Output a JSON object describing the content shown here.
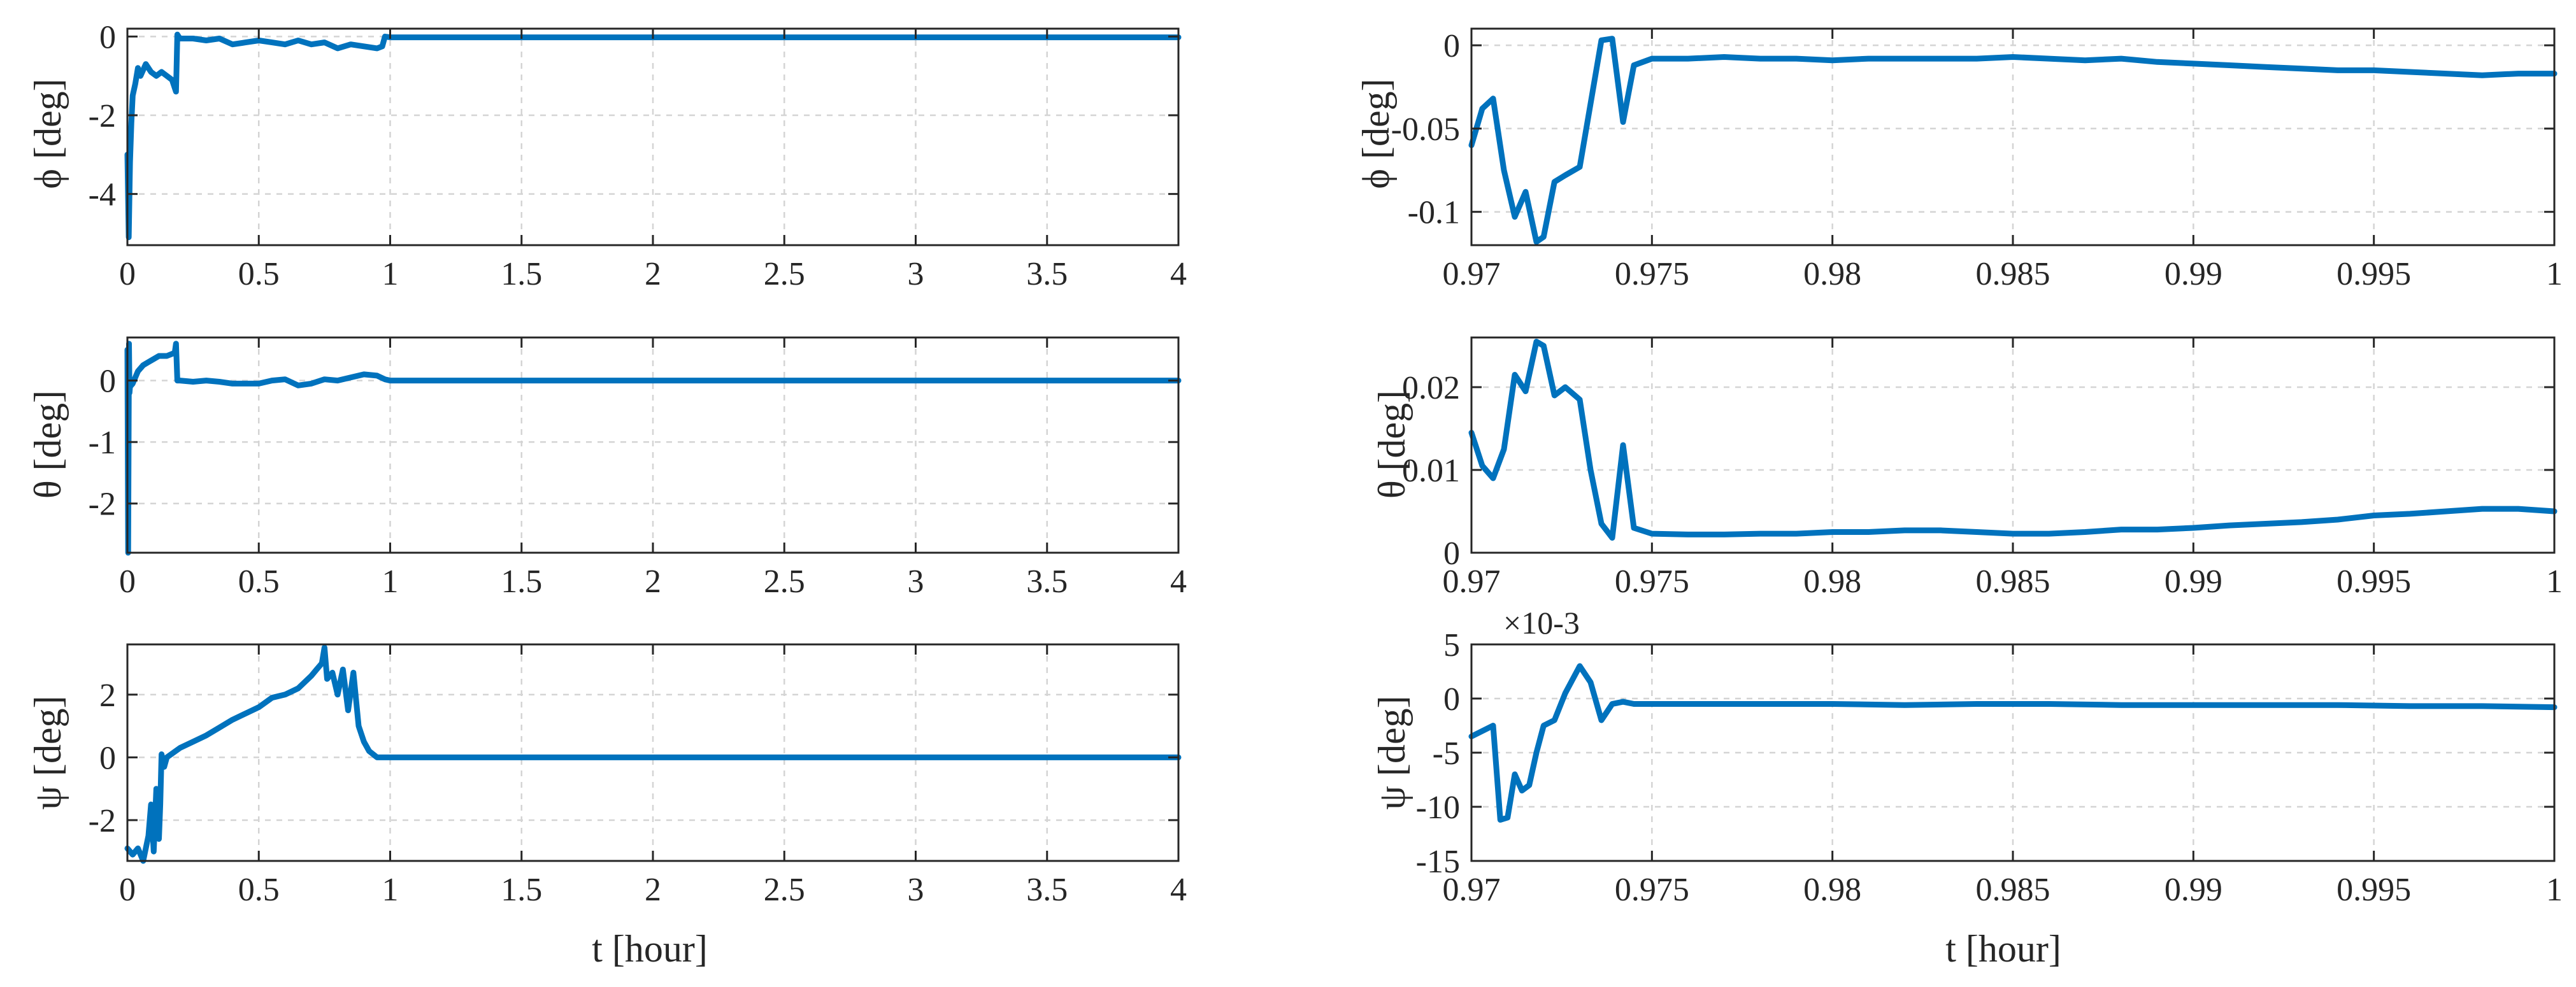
{
  "colors": {
    "line": "#0072BD",
    "axis": "#262626",
    "grid": "#d4d4d4"
  },
  "chart_data": [
    {
      "type": "line",
      "xlabel": "",
      "ylabel": "ϕ [deg]",
      "xlim": [
        0,
        4
      ],
      "ylim": [
        -5.3,
        0.2
      ],
      "xticks": [
        0,
        0.5,
        1,
        1.5,
        2,
        2.5,
        3,
        3.5,
        4
      ],
      "xticklabels": [
        "0",
        "0.5",
        "1",
        "1.5",
        "2",
        "2.5",
        "3",
        "3.5",
        "4"
      ],
      "yticks": [
        -4,
        -2,
        0
      ],
      "yticklabels": [
        "-4",
        "-2",
        "0"
      ],
      "grid": true,
      "exponent": "",
      "series": [
        {
          "x": [
            0,
            0.005,
            0.01,
            0.015,
            0.02,
            0.03,
            0.04,
            0.05,
            0.07,
            0.09,
            0.11,
            0.13,
            0.15,
            0.17,
            0.185,
            0.19,
            0.195,
            0.2,
            0.25,
            0.3,
            0.35,
            0.4,
            0.45,
            0.5,
            0.55,
            0.6,
            0.65,
            0.7,
            0.75,
            0.8,
            0.85,
            0.9,
            0.95,
            0.97,
            0.98,
            1.0,
            1.5,
            2.0,
            2.5,
            3.0,
            3.5,
            4.0
          ],
          "y": [
            -3.0,
            -5.1,
            -3.2,
            -2.2,
            -1.5,
            -1.2,
            -0.8,
            -1.0,
            -0.7,
            -0.9,
            -1.0,
            -0.9,
            -1.0,
            -1.1,
            -1.4,
            0.05,
            0.0,
            -0.05,
            -0.05,
            -0.1,
            -0.05,
            -0.2,
            -0.15,
            -0.1,
            -0.15,
            -0.2,
            -0.1,
            -0.2,
            -0.15,
            -0.3,
            -0.2,
            -0.25,
            -0.3,
            -0.25,
            0.0,
            -0.02,
            -0.02,
            -0.02,
            -0.02,
            -0.02,
            -0.02,
            -0.02
          ]
        }
      ]
    },
    {
      "type": "line",
      "xlabel": "",
      "ylabel": "ϕ [deg]",
      "xlim": [
        0.97,
        1.0
      ],
      "ylim": [
        -0.12,
        0.01
      ],
      "xticks": [
        0.97,
        0.975,
        0.98,
        0.985,
        0.99,
        0.995,
        1.0
      ],
      "xticklabels": [
        "0.97",
        "0.975",
        "0.98",
        "0.985",
        "0.99",
        "0.995",
        "1"
      ],
      "yticks": [
        -0.1,
        -0.05,
        0
      ],
      "yticklabels": [
        "-0.1",
        "-0.05",
        "0"
      ],
      "grid": true,
      "exponent": "",
      "series": [
        {
          "x": [
            0.97,
            0.9703,
            0.9706,
            0.9709,
            0.9712,
            0.9715,
            0.9718,
            0.972,
            0.9723,
            0.9726,
            0.973,
            0.9733,
            0.9736,
            0.9739,
            0.9742,
            0.9745,
            0.975,
            0.976,
            0.977,
            0.978,
            0.979,
            0.98,
            0.981,
            0.982,
            0.983,
            0.984,
            0.985,
            0.986,
            0.987,
            0.988,
            0.989,
            0.99,
            0.991,
            0.992,
            0.993,
            0.994,
            0.995,
            0.996,
            0.997,
            0.998,
            0.999,
            1.0
          ],
          "y": [
            -0.06,
            -0.038,
            -0.032,
            -0.075,
            -0.103,
            -0.088,
            -0.118,
            -0.115,
            -0.082,
            -0.078,
            -0.073,
            -0.035,
            0.003,
            0.004,
            -0.046,
            -0.012,
            -0.008,
            -0.008,
            -0.007,
            -0.008,
            -0.008,
            -0.009,
            -0.008,
            -0.008,
            -0.008,
            -0.008,
            -0.007,
            -0.008,
            -0.009,
            -0.008,
            -0.01,
            -0.011,
            -0.012,
            -0.013,
            -0.014,
            -0.015,
            -0.015,
            -0.016,
            -0.017,
            -0.018,
            -0.017,
            -0.017
          ]
        }
      ]
    },
    {
      "type": "line",
      "xlabel": "",
      "ylabel": "θ [deg]",
      "xlim": [
        0,
        4
      ],
      "ylim": [
        -2.8,
        0.7
      ],
      "xticks": [
        0,
        0.5,
        1,
        1.5,
        2,
        2.5,
        3,
        3.5,
        4
      ],
      "xticklabels": [
        "0",
        "0.5",
        "1",
        "1.5",
        "2",
        "2.5",
        "3",
        "3.5",
        "4"
      ],
      "yticks": [
        -2,
        -1,
        0
      ],
      "yticklabels": [
        "-2",
        "-1",
        "0"
      ],
      "grid": true,
      "exponent": "",
      "series": [
        {
          "x": [
            0,
            0.003,
            0.006,
            0.008,
            0.01,
            0.02,
            0.04,
            0.06,
            0.08,
            0.1,
            0.12,
            0.15,
            0.18,
            0.185,
            0.19,
            0.2,
            0.25,
            0.3,
            0.35,
            0.4,
            0.45,
            0.5,
            0.55,
            0.6,
            0.65,
            0.7,
            0.75,
            0.8,
            0.85,
            0.9,
            0.95,
            0.98,
            1.0,
            1.5,
            2.0,
            2.5,
            3.0,
            3.5,
            4.0
          ],
          "y": [
            0.5,
            -2.8,
            0.6,
            -0.2,
            -0.1,
            -0.05,
            0.15,
            0.25,
            0.3,
            0.35,
            0.4,
            0.4,
            0.45,
            0.6,
            0.0,
            0.0,
            -0.02,
            0.0,
            -0.02,
            -0.05,
            -0.05,
            -0.05,
            0.0,
            0.02,
            -0.08,
            -0.05,
            0.02,
            0.0,
            0.05,
            0.1,
            0.08,
            0.02,
            0.0,
            0.0,
            0.0,
            0.0,
            0.0,
            0.0,
            0.0
          ]
        }
      ]
    },
    {
      "type": "line",
      "xlabel": "",
      "ylabel": "θ [deg]",
      "xlim": [
        0.97,
        1.0
      ],
      "ylim": [
        0,
        0.026
      ],
      "xticks": [
        0.97,
        0.975,
        0.98,
        0.985,
        0.99,
        0.995,
        1.0
      ],
      "xticklabels": [
        "0.97",
        "0.975",
        "0.98",
        "0.985",
        "0.99",
        "0.995",
        "1"
      ],
      "yticks": [
        0,
        0.01,
        0.02
      ],
      "yticklabels": [
        "0",
        "0.01",
        "0.02"
      ],
      "grid": true,
      "exponent": "",
      "series": [
        {
          "x": [
            0.97,
            0.9703,
            0.9706,
            0.9709,
            0.9712,
            0.9715,
            0.9718,
            0.972,
            0.9723,
            0.9726,
            0.973,
            0.9733,
            0.9736,
            0.9739,
            0.9742,
            0.9745,
            0.975,
            0.976,
            0.977,
            0.978,
            0.979,
            0.98,
            0.981,
            0.982,
            0.983,
            0.984,
            0.985,
            0.986,
            0.987,
            0.988,
            0.989,
            0.99,
            0.991,
            0.992,
            0.993,
            0.994,
            0.995,
            0.996,
            0.997,
            0.998,
            0.999,
            1.0
          ],
          "y": [
            0.0145,
            0.0105,
            0.009,
            0.0125,
            0.0215,
            0.0195,
            0.0255,
            0.025,
            0.019,
            0.02,
            0.0185,
            0.01,
            0.0035,
            0.0018,
            0.013,
            0.003,
            0.0023,
            0.0022,
            0.0022,
            0.0023,
            0.0023,
            0.0025,
            0.0025,
            0.0027,
            0.0027,
            0.0025,
            0.0023,
            0.0023,
            0.0025,
            0.0028,
            0.0028,
            0.003,
            0.0033,
            0.0035,
            0.0037,
            0.004,
            0.0045,
            0.0047,
            0.005,
            0.0053,
            0.0053,
            0.005
          ]
        }
      ]
    },
    {
      "type": "line",
      "xlabel": "t [hour]",
      "ylabel": "ψ [deg]",
      "xlim": [
        0,
        4
      ],
      "ylim": [
        -3.3,
        3.6
      ],
      "xticks": [
        0,
        0.5,
        1,
        1.5,
        2,
        2.5,
        3,
        3.5,
        4
      ],
      "xticklabels": [
        "0",
        "0.5",
        "1",
        "1.5",
        "2",
        "2.5",
        "3",
        "3.5",
        "4"
      ],
      "yticks": [
        -2,
        0,
        2
      ],
      "yticklabels": [
        "-2",
        "0",
        "2"
      ],
      "grid": true,
      "exponent": "",
      "series": [
        {
          "x": [
            0,
            0.02,
            0.04,
            0.06,
            0.08,
            0.09,
            0.1,
            0.11,
            0.12,
            0.125,
            0.13,
            0.14,
            0.15,
            0.2,
            0.25,
            0.3,
            0.35,
            0.4,
            0.45,
            0.5,
            0.55,
            0.6,
            0.65,
            0.7,
            0.72,
            0.74,
            0.75,
            0.76,
            0.78,
            0.8,
            0.82,
            0.84,
            0.86,
            0.88,
            0.9,
            0.92,
            0.95,
            1.0,
            1.5,
            2.0,
            2.5,
            3.0,
            3.5,
            4.0
          ],
          "y": [
            -2.9,
            -3.1,
            -2.9,
            -3.3,
            -2.5,
            -1.5,
            -3.0,
            -1.0,
            -2.6,
            -1.5,
            0.1,
            -0.3,
            0.0,
            0.3,
            0.5,
            0.7,
            0.95,
            1.2,
            1.4,
            1.6,
            1.9,
            2.0,
            2.2,
            2.6,
            2.8,
            3.0,
            3.5,
            2.5,
            2.7,
            2.0,
            2.8,
            1.5,
            2.7,
            1.0,
            0.5,
            0.2,
            0.0,
            0.0,
            0.0,
            0.0,
            0.0,
            0.0,
            0.0,
            0.0
          ]
        }
      ]
    },
    {
      "type": "line",
      "xlabel": "t [hour]",
      "ylabel": "ψ [deg]",
      "xlim": [
        0.97,
        1.0
      ],
      "ylim": [
        -15,
        5
      ],
      "xticks": [
        0.97,
        0.975,
        0.98,
        0.985,
        0.99,
        0.995,
        1.0
      ],
      "xticklabels": [
        "0.97",
        "0.975",
        "0.98",
        "0.985",
        "0.99",
        "0.995",
        "1"
      ],
      "yticks": [
        -15,
        -10,
        -5,
        0,
        5
      ],
      "yticklabels": [
        "-15",
        "-10",
        "-5",
        "0",
        "5"
      ],
      "grid": true,
      "exponent": "×10-3",
      "series": [
        {
          "x": [
            0.97,
            0.9703,
            0.9706,
            0.9708,
            0.971,
            0.9712,
            0.9714,
            0.9716,
            0.9718,
            0.972,
            0.9723,
            0.9726,
            0.973,
            0.9733,
            0.9736,
            0.9739,
            0.9742,
            0.9745,
            0.975,
            0.976,
            0.978,
            0.98,
            0.982,
            0.984,
            0.986,
            0.988,
            0.99,
            0.992,
            0.994,
            0.996,
            0.998,
            1.0
          ],
          "y": [
            -3.5,
            -3.0,
            -2.5,
            -11.2,
            -11.0,
            -7.0,
            -8.5,
            -8.0,
            -5.0,
            -2.5,
            -2.0,
            0.5,
            3.0,
            1.5,
            -2.0,
            -0.5,
            -0.3,
            -0.5,
            -0.5,
            -0.5,
            -0.5,
            -0.5,
            -0.6,
            -0.5,
            -0.5,
            -0.6,
            -0.6,
            -0.6,
            -0.6,
            -0.7,
            -0.7,
            -0.8
          ]
        }
      ]
    }
  ]
}
